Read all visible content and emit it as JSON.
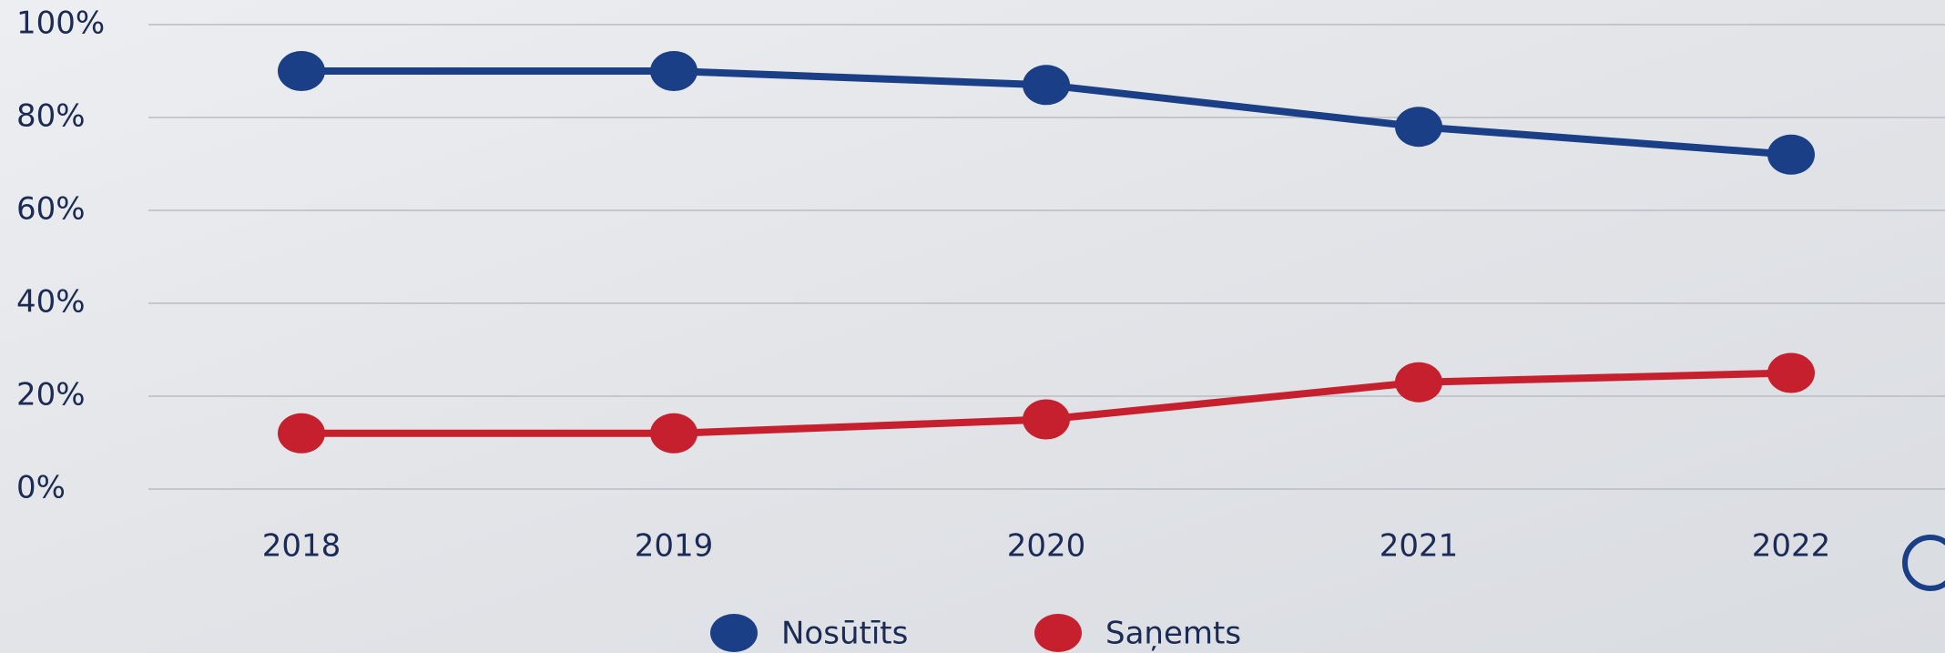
{
  "chart_data": {
    "type": "line",
    "categories": [
      "2018",
      "2019",
      "2020",
      "2021",
      "2022"
    ],
    "series": [
      {
        "name": "Nosūtīts",
        "color": "#1a3f86",
        "values": [
          90,
          90,
          87,
          78,
          72
        ]
      },
      {
        "name": "Saņemts",
        "color": "#c6202f",
        "values": [
          12,
          12,
          15,
          23,
          25
        ]
      }
    ],
    "ylim": [
      0,
      100
    ],
    "yticks": [
      {
        "value": 0,
        "label": "0%"
      },
      {
        "value": 20,
        "label": "20%"
      },
      {
        "value": 40,
        "label": "40%"
      },
      {
        "value": 60,
        "label": "60%"
      },
      {
        "value": 80,
        "label": "80%"
      },
      {
        "value": 100,
        "label": "100%"
      }
    ],
    "grid": true,
    "legend": "bottom"
  }
}
